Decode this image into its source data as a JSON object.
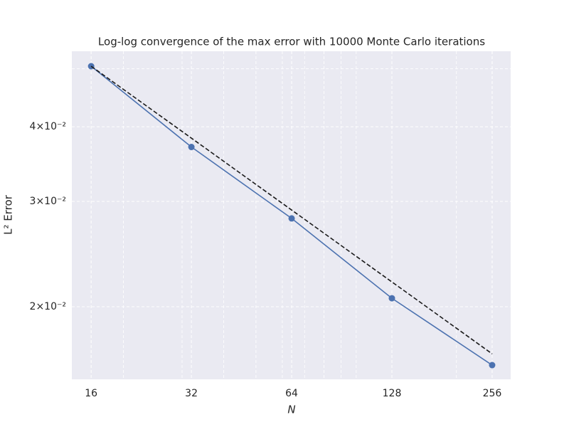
{
  "chart_data": {
    "type": "line",
    "title": "Log-log convergence of the max error with 10000 Monte Carlo iterations",
    "xlabel": "N",
    "ylabel": "L² Error",
    "xscale": "log",
    "yscale": "log",
    "grid": true,
    "xlim": [
      14,
      291
    ],
    "ylim": [
      0.01512,
      0.0535
    ],
    "xticks": [
      16,
      32,
      64,
      128,
      256
    ],
    "xminor": [
      20,
      30,
      40,
      50,
      60,
      70,
      80,
      90,
      100,
      200
    ],
    "yticks": [
      {
        "value": 0.02,
        "label": "2×10⁻²"
      },
      {
        "value": 0.03,
        "label": "3×10⁻²"
      },
      {
        "value": 0.04,
        "label": "4×10⁻²"
      }
    ],
    "yminor": [
      0.05
    ],
    "series": [
      {
        "color": "#4c72b0",
        "style": "solid",
        "markers": true,
        "x": [
          16,
          32,
          64,
          128,
          256
        ],
        "values": [
          0.0505,
          0.037,
          0.0281,
          0.02066,
          0.01597
        ]
      },
      {
        "color": "#1a1a1a",
        "style": "dashed",
        "markers": false,
        "x": [
          16,
          256
        ],
        "values": [
          0.0505,
          0.01668
        ]
      }
    ]
  }
}
